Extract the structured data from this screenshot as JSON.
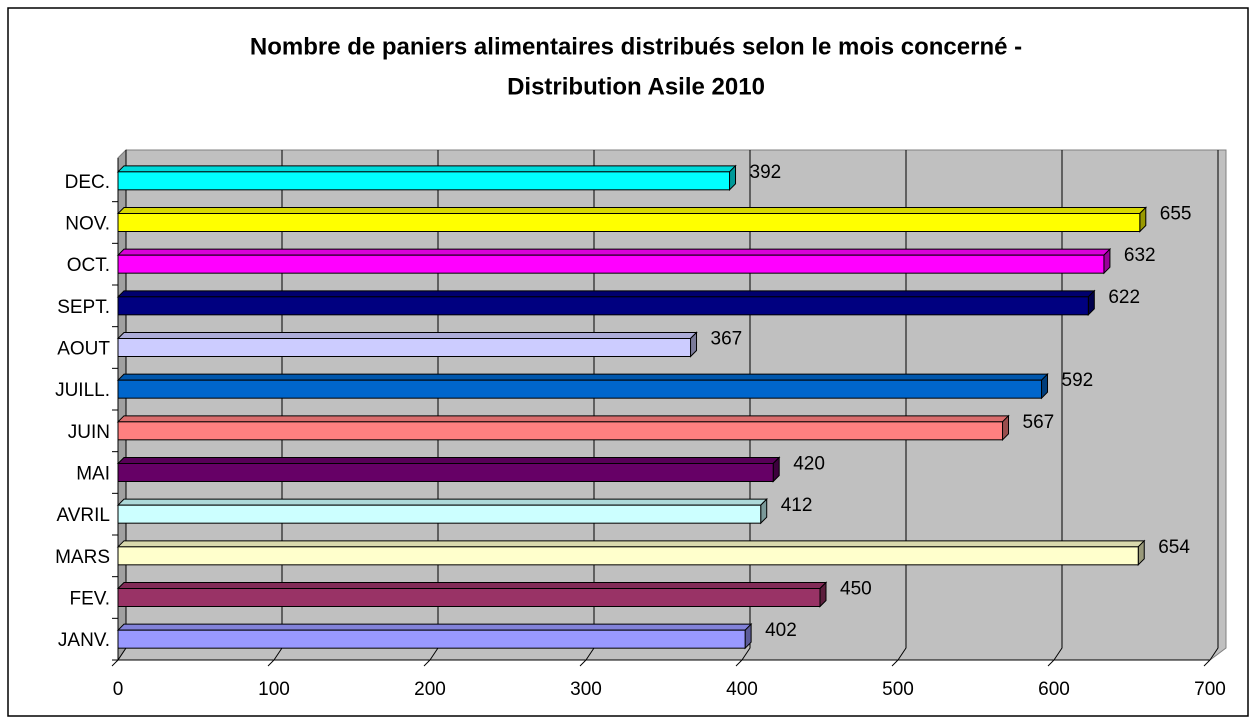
{
  "chart_data": {
    "type": "bar3d_horizontal",
    "title": [
      "Nombre de paniers alimentaires distribués selon le mois concerné -",
      "Distribution Asile 2010"
    ],
    "categories": [
      "JANV.",
      "FEV.",
      "MARS",
      "AVRIL",
      "MAI",
      "JUIN",
      "JUILL.",
      "AOUT",
      "SEPT.",
      "OCT.",
      "NOV.",
      "DEC."
    ],
    "values": [
      402,
      450,
      654,
      412,
      420,
      567,
      592,
      367,
      622,
      632,
      655,
      392
    ],
    "colors": [
      "#9999ff",
      "#993366",
      "#ffffcc",
      "#ccffff",
      "#660066",
      "#ff8080",
      "#0066cc",
      "#ccccff",
      "#000080",
      "#ff00ff",
      "#ffff00",
      "#00ffff"
    ],
    "xlim": [
      0,
      700
    ],
    "xticks": [
      0,
      100,
      200,
      300,
      400,
      500,
      600,
      700
    ],
    "grid": true
  }
}
